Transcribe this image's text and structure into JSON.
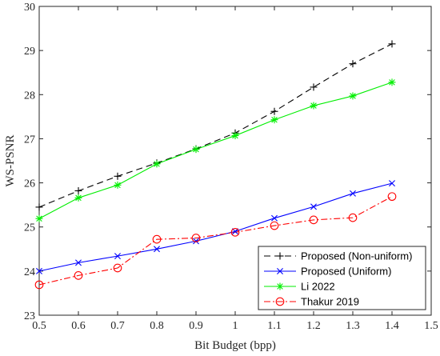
{
  "chart_data": {
    "type": "line",
    "xlabel": "Bit Budget (bpp)",
    "ylabel": "WS-PSNR",
    "xlim": [
      0.5,
      1.5
    ],
    "ylim": [
      23,
      30
    ],
    "xticks": [
      "0.5",
      "0.6",
      "0.7",
      "0.8",
      "0.9",
      "1",
      "1.1",
      "1.2",
      "1.3",
      "1.4",
      "1.5"
    ],
    "yticks": [
      "23",
      "24",
      "25",
      "26",
      "27",
      "28",
      "29",
      "30"
    ],
    "grid": false,
    "legend_position": "bottom-right",
    "x": [
      0.5,
      0.6,
      0.7,
      0.8,
      0.9,
      1.0,
      1.1,
      1.2,
      1.3,
      1.4
    ],
    "series": [
      {
        "name": "Proposed (Non-uniform)",
        "color": "#000000",
        "dash": "8,5",
        "marker": "plus",
        "values": [
          25.45,
          25.82,
          26.15,
          26.45,
          26.77,
          27.13,
          27.62,
          28.17,
          28.7,
          29.15
        ]
      },
      {
        "name": "Proposed (Uniform)",
        "color": "#0000ff",
        "dash": "",
        "marker": "x",
        "values": [
          24.0,
          24.19,
          24.34,
          24.5,
          24.68,
          24.9,
          25.2,
          25.46,
          25.76,
          25.99
        ]
      },
      {
        "name": "Li 2022",
        "color": "#00ee00",
        "dash": "",
        "marker": "star",
        "values": [
          25.19,
          25.66,
          25.95,
          26.43,
          26.76,
          27.07,
          27.43,
          27.75,
          27.97,
          28.28
        ]
      },
      {
        "name": "Thakur 2019",
        "color": "#ff0000",
        "dash": "8,3,2,3",
        "marker": "circle",
        "values": [
          23.69,
          23.9,
          24.07,
          24.72,
          24.75,
          24.88,
          25.03,
          25.16,
          25.21,
          25.69
        ]
      }
    ]
  }
}
